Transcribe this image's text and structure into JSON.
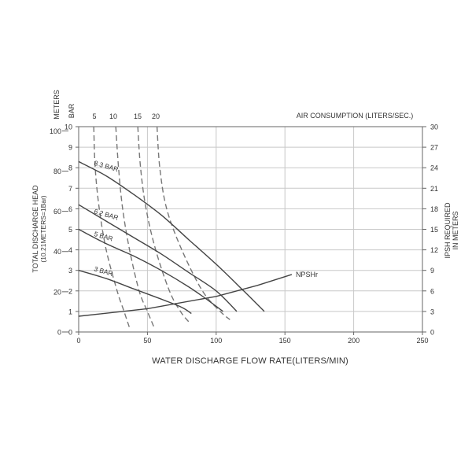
{
  "chart_data": {
    "type": "line",
    "title": "",
    "xlabel": "WATER DISCHARGE FLOW RATE(LITERS/MIN)",
    "x_ticks": [
      "0",
      "50",
      "100",
      "150",
      "200",
      "250"
    ],
    "xlim": [
      0,
      250
    ],
    "left_axes": {
      "meters_label": "METERS",
      "bar_label": "BAR",
      "meters_ticks": [
        "0",
        "20",
        "40",
        "60",
        "80",
        "100"
      ],
      "bar_ticks": [
        "0",
        "1",
        "2",
        "3",
        "4",
        "5",
        "6",
        "7",
        "8",
        "9",
        "10"
      ],
      "ylim_bar": [
        0,
        10
      ],
      "ylabel": "TOTAL  DISCHARGE  HEAD",
      "ylabel_sub": "(10.21METERS=1Bar)"
    },
    "right_axis": {
      "ylabel": "IPSH  REQUIRED",
      "ylabel_sub": "IN  METERS",
      "ticks": [
        "0",
        "3",
        "6",
        "9",
        "12",
        "15",
        "18",
        "21",
        "24",
        "27",
        "30"
      ],
      "ylim": [
        0,
        30
      ]
    },
    "top_axis": {
      "label": "AIR CONSUMPTION (LITERS/SEC.)",
      "ticks": [
        "5",
        "10",
        "15",
        "20"
      ]
    },
    "pressure_curves": [
      {
        "name": "8.3 BAR",
        "points": [
          [
            0,
            8.3
          ],
          [
            20,
            7.6
          ],
          [
            40,
            6.7
          ],
          [
            60,
            5.7
          ],
          [
            80,
            4.5
          ],
          [
            100,
            3.3
          ],
          [
            120,
            2.0
          ],
          [
            135,
            1.0
          ]
        ]
      },
      {
        "name": "6.2 BAR",
        "points": [
          [
            0,
            6.2
          ],
          [
            20,
            5.4
          ],
          [
            40,
            4.6
          ],
          [
            60,
            3.8
          ],
          [
            80,
            2.9
          ],
          [
            100,
            2.0
          ],
          [
            115,
            1.0
          ]
        ]
      },
      {
        "name": "5 BAR",
        "points": [
          [
            0,
            5.0
          ],
          [
            20,
            4.3
          ],
          [
            40,
            3.7
          ],
          [
            60,
            3.0
          ],
          [
            80,
            2.2
          ],
          [
            95,
            1.5
          ],
          [
            105,
            1.0
          ]
        ]
      },
      {
        "name": "3 BAR",
        "points": [
          [
            0,
            3.0
          ],
          [
            20,
            2.6
          ],
          [
            40,
            2.1
          ],
          [
            60,
            1.6
          ],
          [
            75,
            1.2
          ],
          [
            82,
            0.9
          ]
        ]
      }
    ],
    "air_consumption_curves": [
      {
        "name": "5",
        "points": [
          [
            11,
            10
          ],
          [
            12,
            8
          ],
          [
            15,
            6
          ],
          [
            20,
            4
          ],
          [
            28,
            2
          ],
          [
            33,
            1.0
          ],
          [
            37,
            0.2
          ]
        ]
      },
      {
        "name": "10",
        "points": [
          [
            27,
            10
          ],
          [
            29,
            8
          ],
          [
            32,
            6
          ],
          [
            37,
            4
          ],
          [
            44,
            2
          ],
          [
            50,
            1.0
          ],
          [
            55,
            0.2
          ]
        ]
      },
      {
        "name": "15",
        "points": [
          [
            43,
            10
          ],
          [
            45,
            8
          ],
          [
            49,
            6
          ],
          [
            56,
            4
          ],
          [
            66,
            2
          ],
          [
            74,
            1.0
          ],
          [
            80,
            0.5
          ]
        ]
      },
      {
        "name": "20",
        "points": [
          [
            57,
            10
          ],
          [
            59,
            8
          ],
          [
            64,
            6
          ],
          [
            75,
            4
          ],
          [
            90,
            2
          ],
          [
            103,
            1.0
          ],
          [
            110,
            0.6
          ]
        ]
      }
    ],
    "npshr": {
      "name": "NPSHr",
      "points": [
        [
          0,
          2.3
        ],
        [
          50,
          3.4
        ],
        [
          100,
          5.2
        ],
        [
          130,
          6.8
        ],
        [
          155,
          8.4
        ]
      ]
    },
    "grid": true
  }
}
